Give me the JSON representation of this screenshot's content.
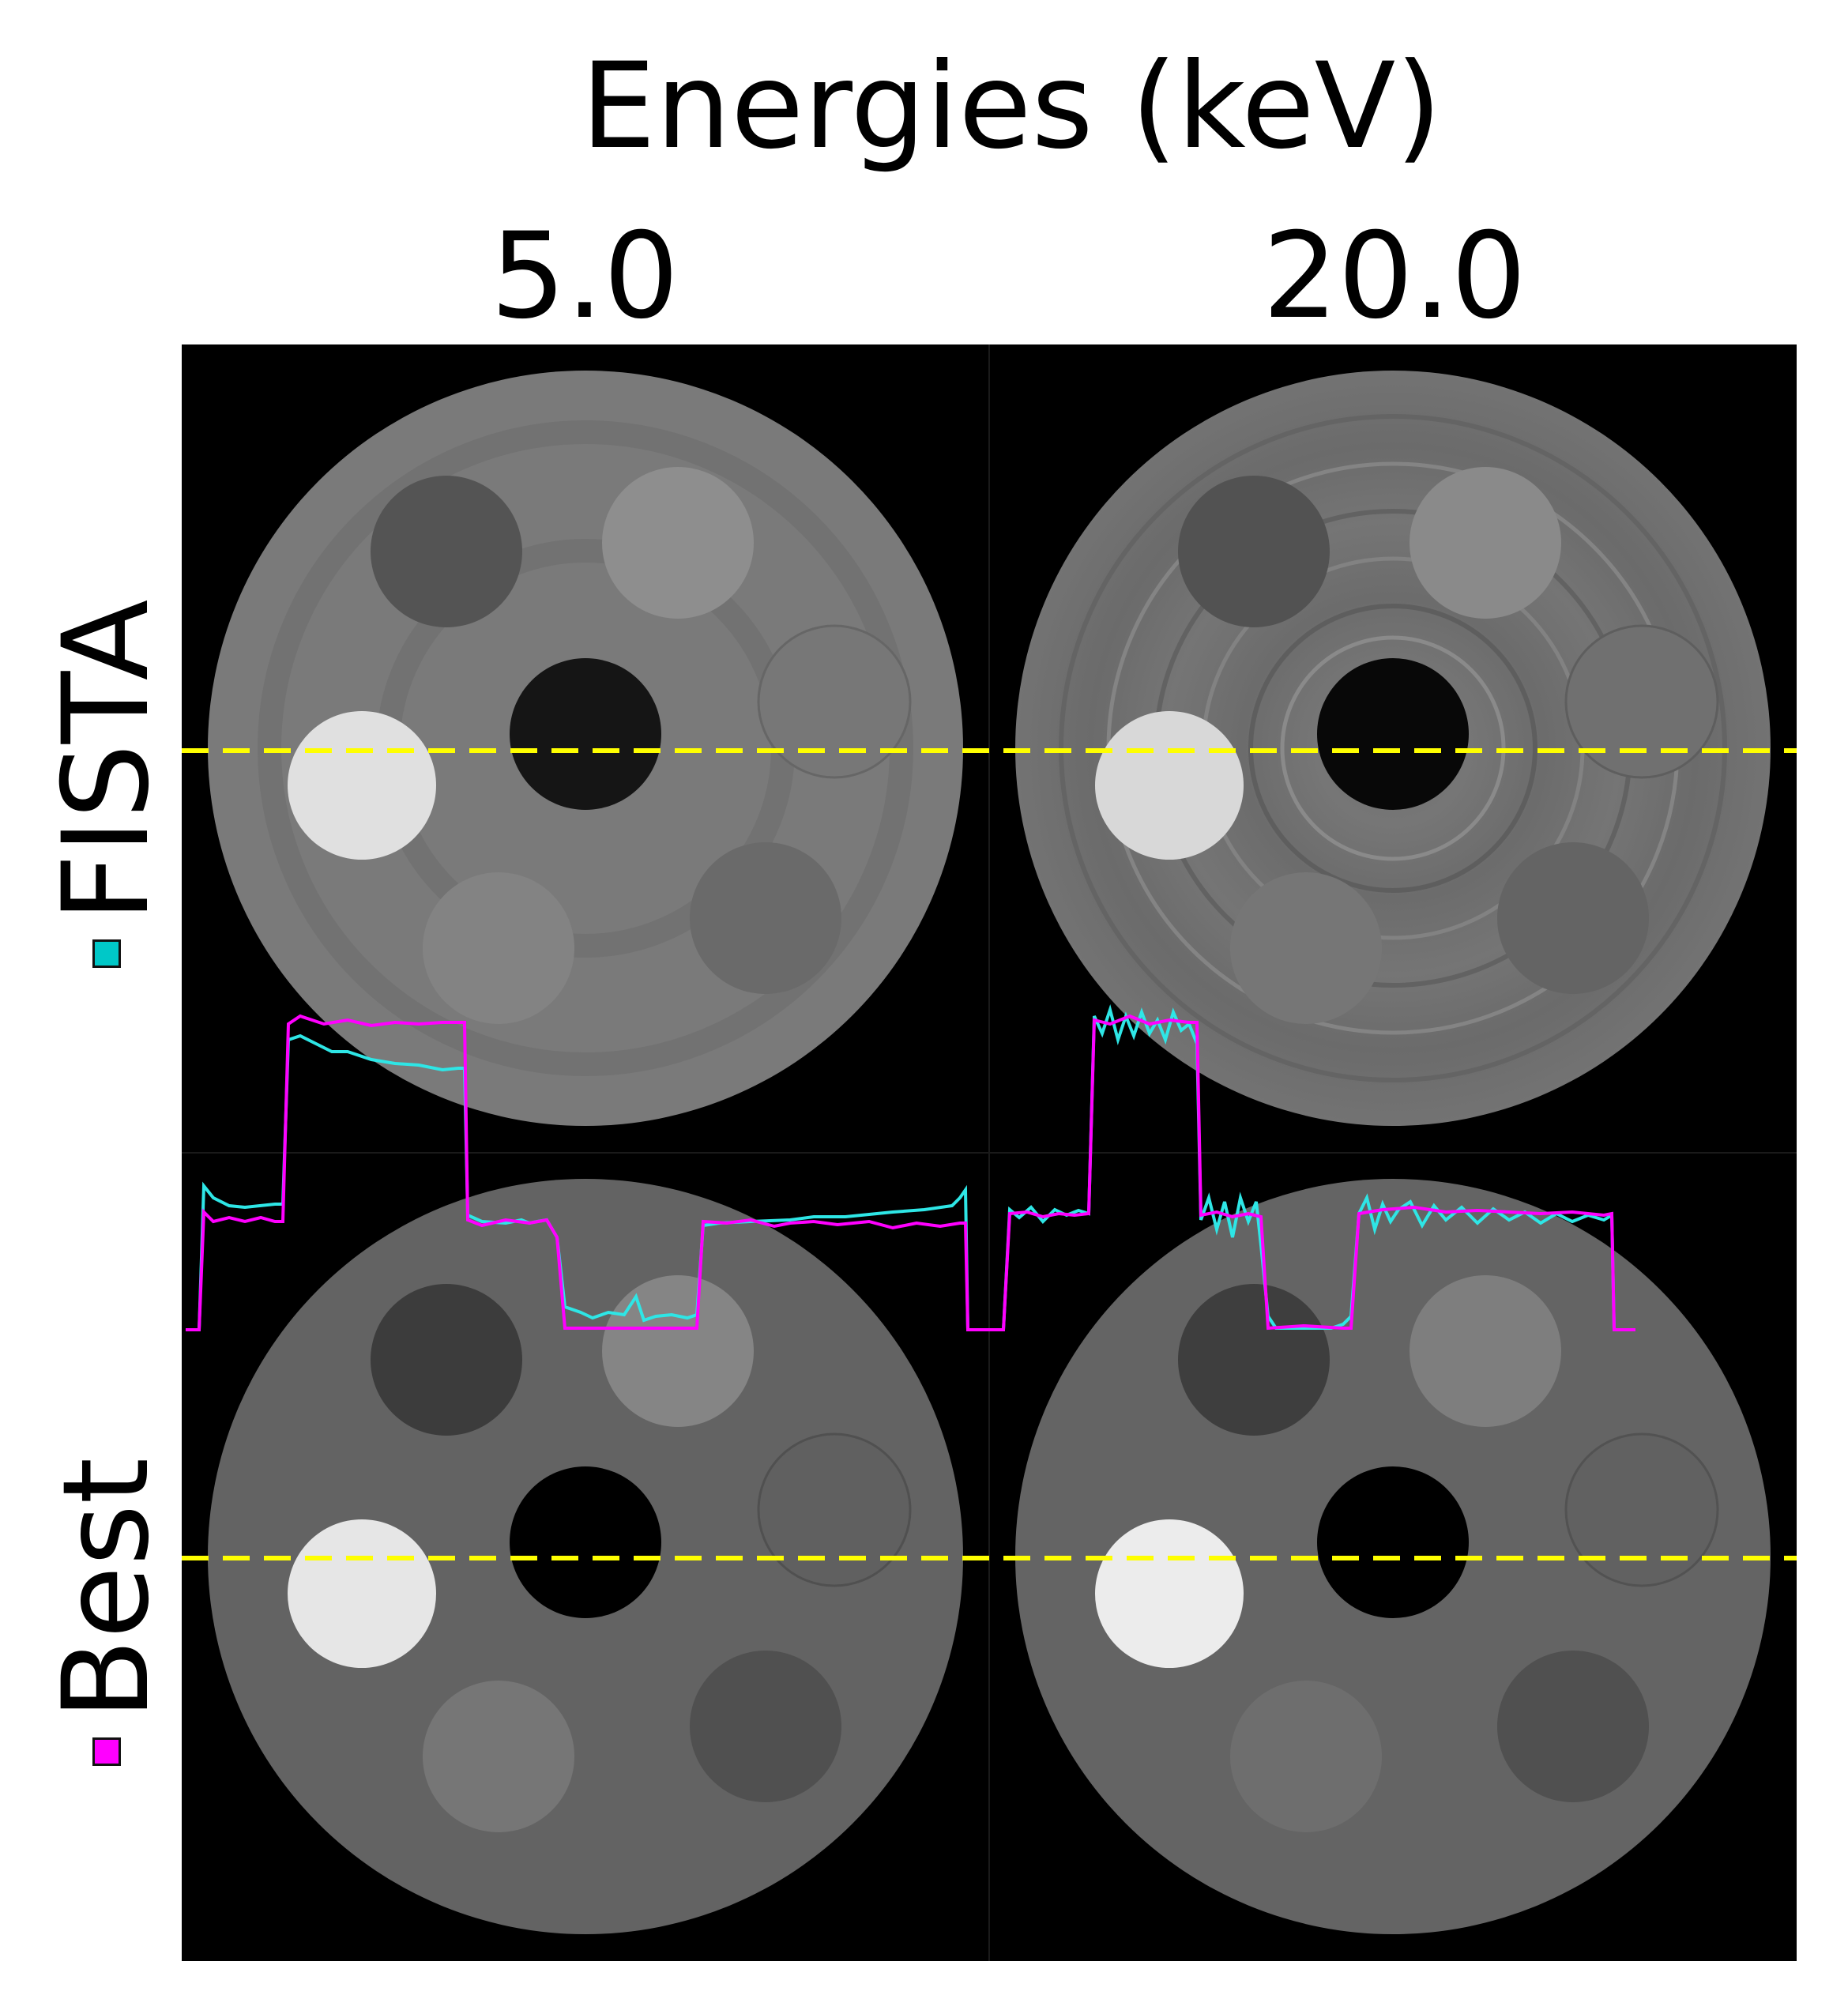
{
  "figure": {
    "title": "Energies (keV)",
    "columns": [
      "5.0",
      "20.0"
    ],
    "rows": [
      {
        "label": "FISTA",
        "color": "#00c8c8"
      },
      {
        "label": "Best",
        "color": "#ff00ff"
      }
    ],
    "profile_line_color": "#ffff00"
  },
  "colors": {
    "fista_profile": "#2ee6e6",
    "best_profile": "#ff00ff",
    "background": "#000000"
  }
}
